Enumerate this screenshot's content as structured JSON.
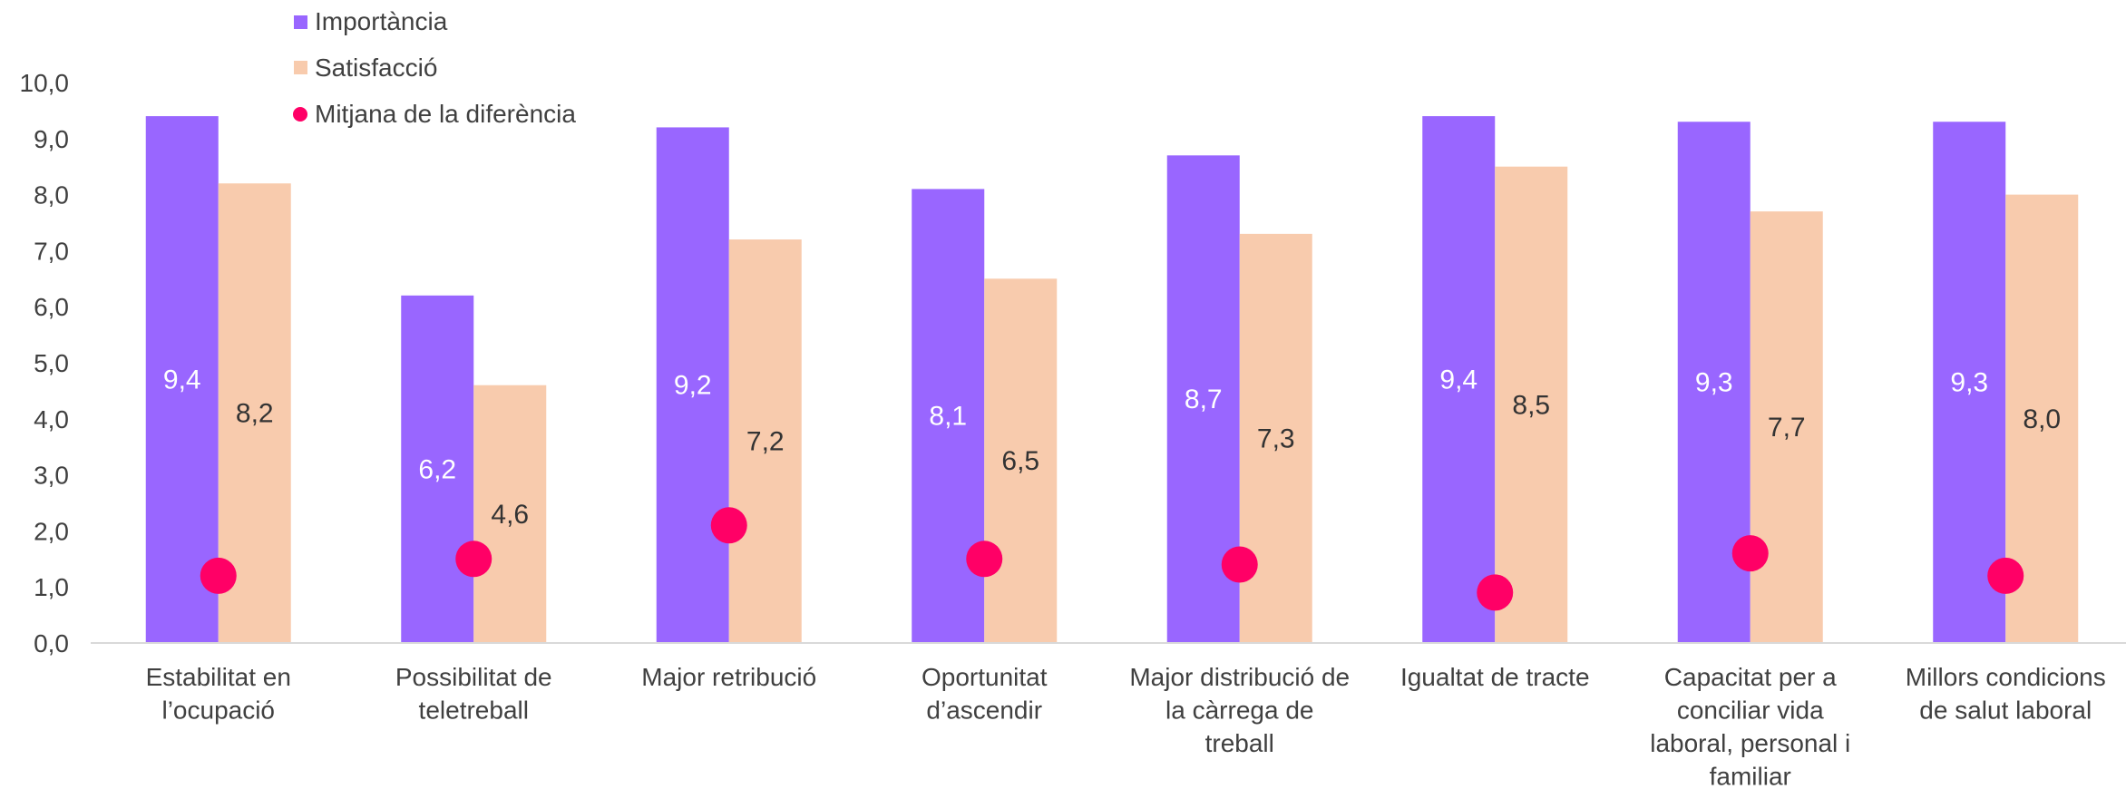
{
  "chart_data": {
    "type": "bar",
    "title": "",
    "xlabel": "",
    "ylabel": "",
    "ylim": [
      0,
      10
    ],
    "yticks": [
      "0,0",
      "1,0",
      "2,0",
      "3,0",
      "4,0",
      "5,0",
      "6,0",
      "7,0",
      "8,0",
      "9,0",
      "10,0"
    ],
    "grid": false,
    "legend_position": "top-left",
    "categories": [
      [
        "Estabilitat en",
        "l’ocupació"
      ],
      [
        "Possibilitat de",
        "teletreball"
      ],
      [
        "Major retribució"
      ],
      [
        "Oportunitat",
        "d’ascendir"
      ],
      [
        "Major distribució de",
        "la càrrega de",
        "treball"
      ],
      [
        "Igualtat de tracte"
      ],
      [
        "Capacitat per a",
        "conciliar vida",
        "laboral, personal i",
        "familiar"
      ],
      [
        "Millors condicions",
        "de salut laboral"
      ]
    ],
    "series": [
      {
        "name": "Importància",
        "kind": "bar",
        "color": "#9966ff",
        "label_color": "#ffffff",
        "values": [
          9.4,
          6.2,
          9.2,
          8.1,
          8.7,
          9.4,
          9.3,
          9.3
        ],
        "labels": [
          "9,4",
          "6,2",
          "9,2",
          "8,1",
          "8,7",
          "9,4",
          "9,3",
          "9,3"
        ]
      },
      {
        "name": "Satisfacció",
        "kind": "bar",
        "color": "#f8cbad",
        "label_color": "#333333",
        "values": [
          8.2,
          4.6,
          7.2,
          6.5,
          7.3,
          8.5,
          7.7,
          8.0
        ],
        "labels": [
          "8,2",
          "4,6",
          "7,2",
          "6,5",
          "7,3",
          "8,5",
          "7,7",
          "8,0"
        ]
      },
      {
        "name": "Mitjana de la diferència",
        "kind": "dot",
        "color": "#ff0066",
        "values": [
          1.2,
          1.5,
          2.1,
          1.5,
          1.4,
          0.9,
          1.6,
          1.2
        ]
      }
    ]
  }
}
